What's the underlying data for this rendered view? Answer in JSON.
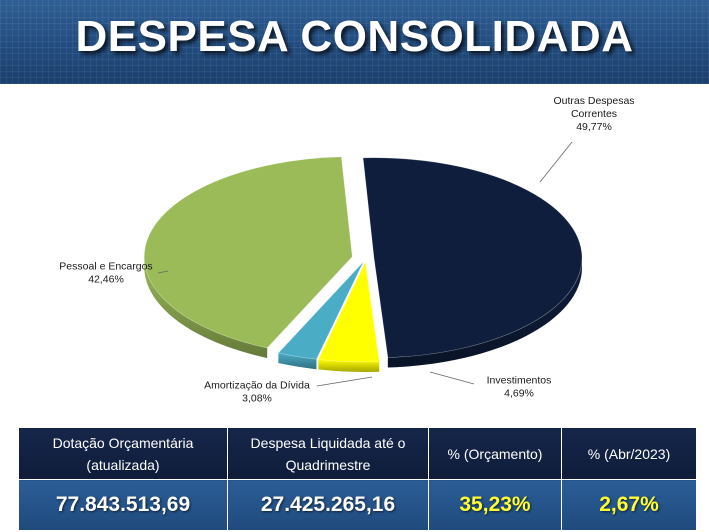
{
  "header": {
    "title": "DESPESA CONSOLIDADA"
  },
  "chart_data": {
    "type": "pie",
    "title": "",
    "slices": [
      {
        "name_lines": [
          "Outras Despesas",
          "Correntes"
        ],
        "value_label": "49,77%",
        "value": 49.77,
        "color": "#0f1e3d"
      },
      {
        "name_lines": [
          "Investimentos"
        ],
        "value_label": "4,69%",
        "value": 4.69,
        "color": "#ffff00"
      },
      {
        "name_lines": [
          "Amortização da Dívida"
        ],
        "value_label": "3,08%",
        "value": 3.08,
        "color": "#4bacc6"
      },
      {
        "name_lines": [
          "Pessoal e Encargos"
        ],
        "value_label": "42,46%",
        "value": 42.46,
        "color": "#9bbb59"
      }
    ]
  },
  "table": {
    "headers": [
      [
        "Dotação Orçamentária",
        "(atualizada)"
      ],
      [
        "Despesa Liquidada até o",
        "Quadrimestre"
      ],
      [
        "%  (Orçamento)"
      ],
      [
        "%  (Abr/2023)"
      ]
    ],
    "values": [
      "77.843.513,69",
      "27.425.265,16",
      "35,23%",
      "2,67%"
    ],
    "highlight_color": "#ffff33"
  }
}
